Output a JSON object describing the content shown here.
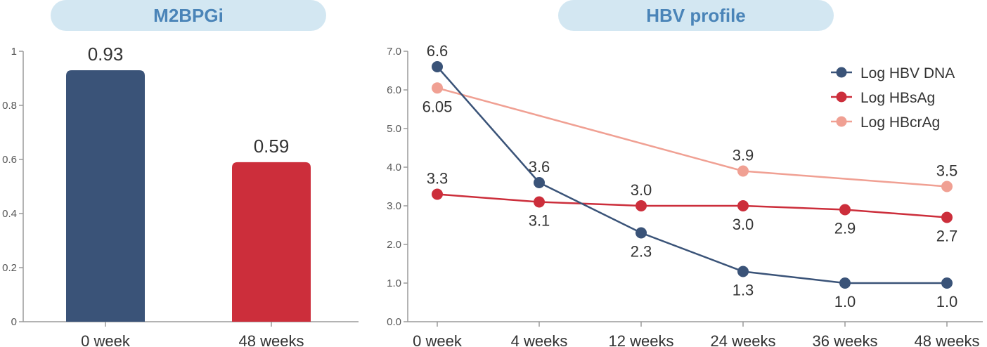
{
  "panels": {
    "left_title": "M2BPGi",
    "right_title": "HBV profile"
  },
  "chart_data": [
    {
      "type": "bar",
      "title": "M2BPGi",
      "categories": [
        "0 week",
        "48 weeks"
      ],
      "values": [
        0.93,
        0.59
      ],
      "data_labels": [
        "0.93",
        "0.59"
      ],
      "bar_colors": [
        "#3a5378",
        "#cc2e3b"
      ],
      "ylim": [
        0,
        1
      ],
      "yticks": [
        0,
        0.2,
        0.4,
        0.6,
        0.8,
        1
      ],
      "ytick_labels": [
        "0",
        "0.2",
        "0.4",
        "0.6",
        "0.8",
        "1"
      ],
      "grid": false
    },
    {
      "type": "line",
      "title": "HBV profile",
      "categories": [
        "0 week",
        "4 weeks",
        "12 weeks",
        "24 weeks",
        "36 weeks",
        "48 weeks"
      ],
      "ylim": [
        0,
        7
      ],
      "yticks": [
        0,
        1,
        2,
        3,
        4,
        5,
        6,
        7
      ],
      "ytick_labels": [
        "0.0",
        "1.0",
        "2.0",
        "3.0",
        "4.0",
        "5.0",
        "6.0",
        "7.0"
      ],
      "grid": false,
      "legend_position": "top-right",
      "series": [
        {
          "name": "Log HBV DNA",
          "color": "#3a5378",
          "points": [
            {
              "x": "0 week",
              "y": 6.6,
              "label": "6.6",
              "label_pos": "above"
            },
            {
              "x": "4 weeks",
              "y": 3.6,
              "label": "3.6",
              "label_pos": "above"
            },
            {
              "x": "12 weeks",
              "y": 2.3,
              "label": "2.3",
              "label_pos": "below"
            },
            {
              "x": "24 weeks",
              "y": 1.3,
              "label": "1.3",
              "label_pos": "below"
            },
            {
              "x": "36 weeks",
              "y": 1.0,
              "label": "1.0",
              "label_pos": "below"
            },
            {
              "x": "48 weeks",
              "y": 1.0,
              "label": "1.0",
              "label_pos": "below"
            }
          ]
        },
        {
          "name": "Log HBsAg",
          "color": "#cc2e3b",
          "points": [
            {
              "x": "0 week",
              "y": 3.3,
              "label": "3.3",
              "label_pos": "above"
            },
            {
              "x": "4 weeks",
              "y": 3.1,
              "label": "3.1",
              "label_pos": "below"
            },
            {
              "x": "12 weeks",
              "y": 3.0,
              "label": "3.0",
              "label_pos": "above"
            },
            {
              "x": "24 weeks",
              "y": 3.0,
              "label": "3.0",
              "label_pos": "below"
            },
            {
              "x": "36 weeks",
              "y": 2.9,
              "label": "2.9",
              "label_pos": "below"
            },
            {
              "x": "48 weeks",
              "y": 2.7,
              "label": "2.7",
              "label_pos": "below"
            }
          ]
        },
        {
          "name": "Log HBcrAg",
          "color": "#f0a093",
          "points": [
            {
              "x": "0 week",
              "y": 6.05,
              "label": "6.05",
              "label_pos": "below"
            },
            {
              "x": "24 weeks",
              "y": 3.9,
              "label": "3.9",
              "label_pos": "above"
            },
            {
              "x": "48 weeks",
              "y": 3.5,
              "label": "3.5",
              "label_pos": "above"
            }
          ]
        }
      ]
    }
  ]
}
